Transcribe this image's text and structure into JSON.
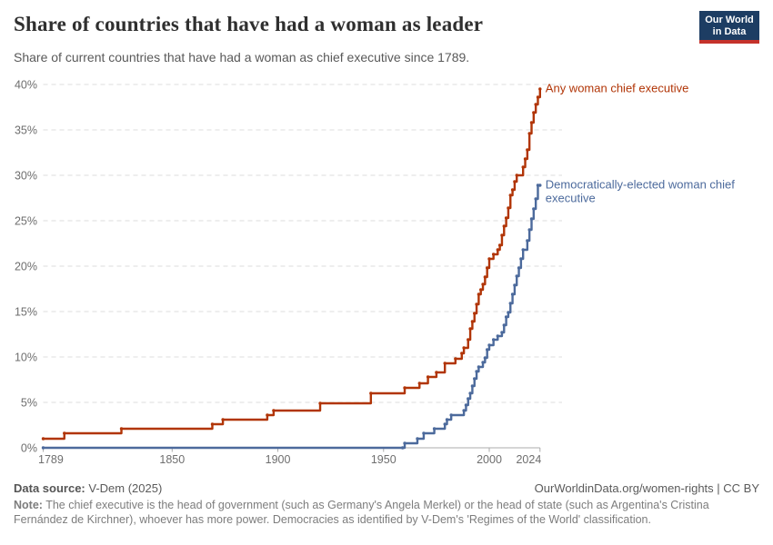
{
  "header": {
    "title": "Share of countries that have had a woman as leader",
    "subtitle": "Share of current countries that have had a woman as chief executive since 1789.",
    "logo": {
      "line1": "Our World",
      "line2": "in Data"
    }
  },
  "chart_data": {
    "type": "line",
    "step": true,
    "title": "Share of countries that have had a woman as leader",
    "xlabel": "",
    "ylabel": "",
    "xlim": [
      1789,
      2024
    ],
    "ylim": [
      0,
      40
    ],
    "x_ticks": [
      1789,
      1850,
      1900,
      1950,
      2000,
      2024
    ],
    "y_ticks": [
      0,
      5,
      10,
      15,
      20,
      25,
      30,
      35,
      40
    ],
    "y_tick_suffix": "%",
    "grid": "horizontal-dashed",
    "legend_position": "line-end-labels",
    "series": [
      {
        "name": "Any woman chief executive",
        "color": "#B13507",
        "label_lines": [
          "Any woman chief executive"
        ],
        "points": [
          [
            1789,
            1.0
          ],
          [
            1799,
            1.6
          ],
          [
            1826,
            2.1
          ],
          [
            1869,
            2.6
          ],
          [
            1874,
            3.1
          ],
          [
            1895,
            3.6
          ],
          [
            1898,
            4.1
          ],
          [
            1920,
            4.9
          ],
          [
            1944,
            6.0
          ],
          [
            1960,
            6.6
          ],
          [
            1967,
            7.1
          ],
          [
            1971,
            7.8
          ],
          [
            1975,
            8.3
          ],
          [
            1979,
            9.3
          ],
          [
            1984,
            9.8
          ],
          [
            1987,
            10.4
          ],
          [
            1988,
            11.0
          ],
          [
            1990,
            11.9
          ],
          [
            1991,
            13.1
          ],
          [
            1992,
            13.9
          ],
          [
            1993,
            14.8
          ],
          [
            1994,
            15.8
          ],
          [
            1995,
            16.9
          ],
          [
            1996,
            17.4
          ],
          [
            1997,
            18.0
          ],
          [
            1998,
            18.8
          ],
          [
            1999,
            19.8
          ],
          [
            2000,
            20.8
          ],
          [
            2002,
            21.3
          ],
          [
            2004,
            21.8
          ],
          [
            2005,
            22.3
          ],
          [
            2006,
            23.4
          ],
          [
            2007,
            24.4
          ],
          [
            2008,
            25.3
          ],
          [
            2009,
            26.4
          ],
          [
            2010,
            27.8
          ],
          [
            2011,
            28.4
          ],
          [
            2012,
            29.3
          ],
          [
            2013,
            30.0
          ],
          [
            2016,
            30.9
          ],
          [
            2017,
            31.8
          ],
          [
            2018,
            32.8
          ],
          [
            2019,
            34.6
          ],
          [
            2020,
            35.8
          ],
          [
            2021,
            36.9
          ],
          [
            2022,
            37.8
          ],
          [
            2023,
            38.6
          ],
          [
            2024,
            39.5
          ]
        ]
      },
      {
        "name": "Democratically-elected woman chief executive",
        "color": "#4C6A9C",
        "label_lines": [
          "Democratically-elected woman chief",
          "executive"
        ],
        "points": [
          [
            1789,
            0.0
          ],
          [
            1959,
            0.0
          ],
          [
            1960,
            0.5
          ],
          [
            1966,
            1.0
          ],
          [
            1969,
            1.6
          ],
          [
            1974,
            2.1
          ],
          [
            1979,
            2.6
          ],
          [
            1980,
            3.1
          ],
          [
            1982,
            3.6
          ],
          [
            1988,
            4.1
          ],
          [
            1989,
            4.7
          ],
          [
            1990,
            5.4
          ],
          [
            1991,
            6.0
          ],
          [
            1992,
            6.8
          ],
          [
            1993,
            7.6
          ],
          [
            1994,
            8.4
          ],
          [
            1995,
            8.9
          ],
          [
            1997,
            9.4
          ],
          [
            1998,
            9.9
          ],
          [
            1999,
            10.8
          ],
          [
            2000,
            11.3
          ],
          [
            2002,
            11.9
          ],
          [
            2004,
            12.3
          ],
          [
            2006,
            12.7
          ],
          [
            2007,
            13.5
          ],
          [
            2008,
            14.4
          ],
          [
            2009,
            14.9
          ],
          [
            2010,
            15.9
          ],
          [
            2011,
            16.9
          ],
          [
            2012,
            17.9
          ],
          [
            2013,
            18.9
          ],
          [
            2014,
            19.8
          ],
          [
            2015,
            20.8
          ],
          [
            2016,
            21.8
          ],
          [
            2018,
            22.8
          ],
          [
            2019,
            24.0
          ],
          [
            2020,
            25.2
          ],
          [
            2021,
            26.3
          ],
          [
            2022,
            27.4
          ],
          [
            2023,
            28.9
          ],
          [
            2024,
            28.9
          ]
        ]
      }
    ]
  },
  "footer": {
    "source_label": "Data source:",
    "source_value": "V-Dem (2025)",
    "attribution": "OurWorldinData.org/women-rights | CC BY",
    "note_label": "Note:",
    "note_text": "The chief executive is the head of government (such as Germany's Angela Merkel) or the head of state (such as Argentina's Cristina Fernández de Kirchner), whoever has more power. Democracies as identified by V-Dem's 'Regimes of the World' classification."
  },
  "colors": {
    "grid": "#DCDCDC",
    "axis": "#ABABAB",
    "tick_text": "#6E6E6E",
    "logo_bg": "#1D3D63",
    "logo_bar": "#C5322B"
  }
}
